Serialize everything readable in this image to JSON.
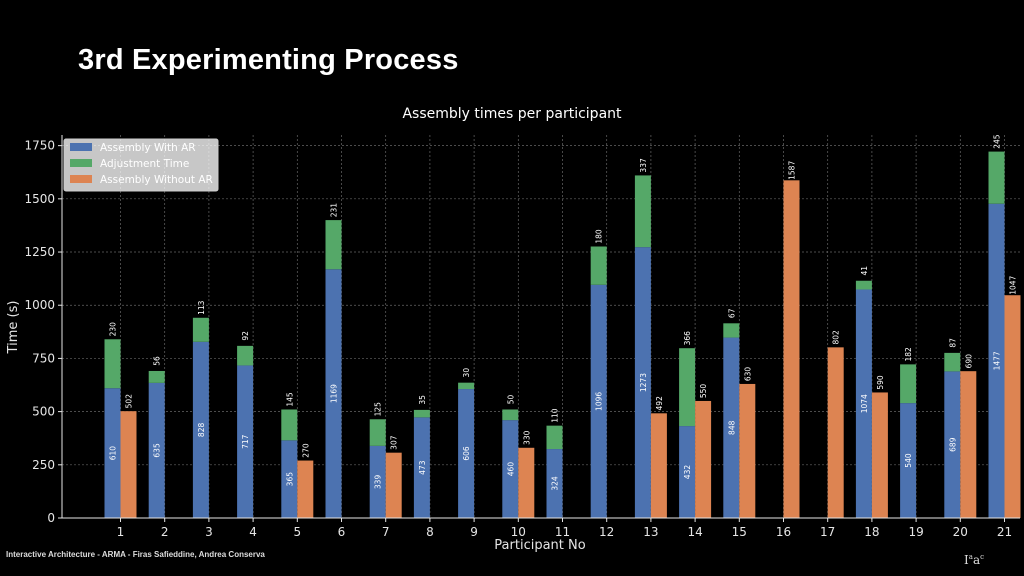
{
  "slide": {
    "title": "3rd Experimenting Process",
    "footer": "Interactive Architecture - ARMA - Firas Safieddine, Andrea Conserva",
    "logo_text": "IaaC"
  },
  "colors": {
    "assembly_ar": "#4c72b0",
    "adjustment": "#55a868",
    "without_ar": "#dd8452",
    "background": "#000000",
    "grid": "#666666"
  },
  "chart_data": {
    "type": "bar",
    "title": "Assembly times per participant",
    "xlabel": "Participant No",
    "ylabel": "Time (s)",
    "ylim": [
      0,
      1800
    ],
    "yticks": [
      0,
      250,
      500,
      750,
      1000,
      1250,
      1500,
      1750
    ],
    "grid": true,
    "legend_position": "top-left",
    "categories": [
      "1",
      "2",
      "3",
      "4",
      "5",
      "6",
      "7",
      "8",
      "9",
      "10",
      "11",
      "12",
      "13",
      "14",
      "15",
      "16",
      "17",
      "18",
      "19",
      "20",
      "21"
    ],
    "series": [
      {
        "name": "Assembly With AR",
        "stack": "AR",
        "values": [
          610,
          635,
          828,
          717,
          365,
          1169,
          339,
          473,
          606,
          460,
          324,
          1096,
          1273,
          432,
          848,
          null,
          null,
          1074,
          540,
          689,
          1477
        ]
      },
      {
        "name": "Adjustment Time",
        "stack": "AR",
        "values": [
          230,
          56,
          113,
          92,
          145,
          231,
          125,
          35,
          30,
          50,
          110,
          180,
          337,
          366,
          67,
          null,
          null,
          41,
          182,
          87,
          245
        ]
      },
      {
        "name": "Assembly Without AR",
        "stack": "noAR",
        "values": [
          502,
          null,
          null,
          null,
          270,
          null,
          307,
          null,
          null,
          330,
          null,
          null,
          492,
          550,
          630,
          1587,
          802,
          590,
          null,
          690,
          1047
        ]
      }
    ]
  }
}
